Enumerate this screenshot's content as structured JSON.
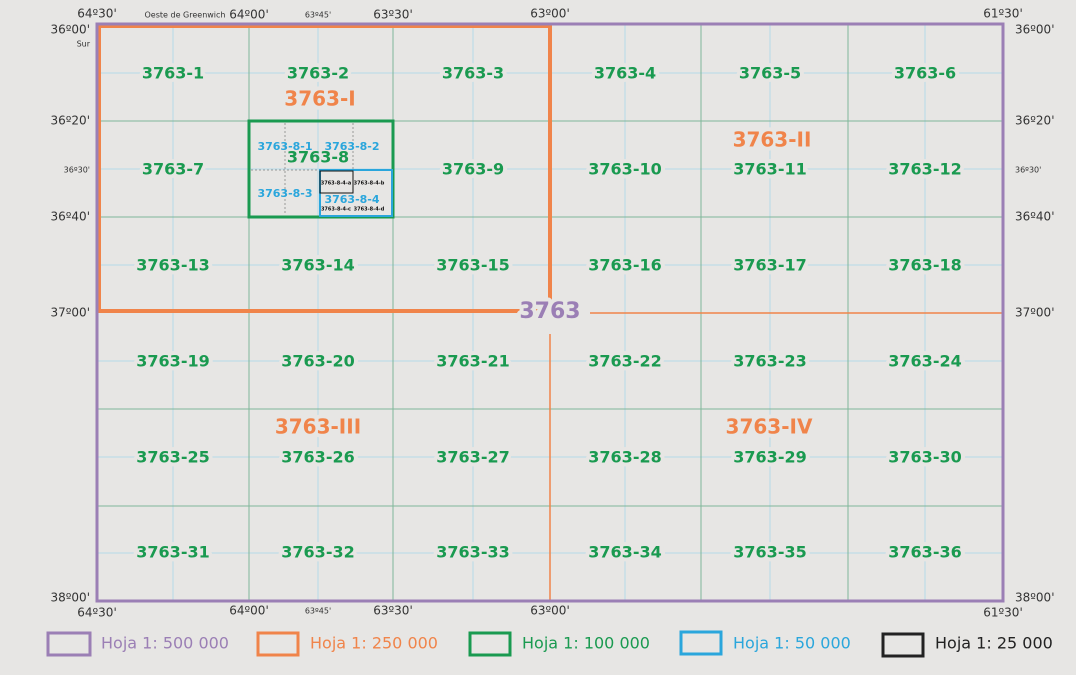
{
  "longitude_labels_top": [
    "64º30'",
    "Oeste de Greenwich",
    "64º00'",
    "63º45'",
    "63º30'",
    "63º00'",
    "61º30'"
  ],
  "longitude_labels_bottom": [
    "64º30'",
    "64º00'",
    "63º45'",
    "63º30'",
    "63º00'",
    "61º30'"
  ],
  "latitude_labels_left": [
    "36º00'",
    "Sur",
    "36º20'",
    "36º30'",
    "36º40'",
    "37º00'",
    "38º00'"
  ],
  "latitude_labels_right": [
    "36º00'",
    "36º20'",
    "36º30'",
    "36º40'",
    "37º00'",
    "38º00'"
  ],
  "sheet_500k": "3763",
  "sheets_250k": [
    "3763-I",
    "3763-II",
    "3763-III",
    "3763-IV"
  ],
  "sheets_100k": [
    "3763-1",
    "3763-2",
    "3763-3",
    "3763-4",
    "3763-5",
    "3763-6",
    "3763-7",
    "3763-8",
    "3763-9",
    "3763-10",
    "3763-11",
    "3763-12",
    "3763-13",
    "3763-14",
    "3763-15",
    "3763-16",
    "3763-17",
    "3763-18",
    "3763-19",
    "3763-20",
    "3763-21",
    "3763-22",
    "3763-23",
    "3763-24",
    "3763-25",
    "3763-26",
    "3763-27",
    "3763-28",
    "3763-29",
    "3763-30",
    "3763-31",
    "3763-32",
    "3763-33",
    "3763-34",
    "3763-35",
    "3763-36"
  ],
  "sheets_50k": [
    "3763-8-1",
    "3763-8-2",
    "3763-8-3",
    "3763-8-4"
  ],
  "sheets_25k": [
    "3763-8-4-a",
    "3763-8-4-b",
    "3763-8-4-c",
    "3763-8-4-d"
  ],
  "legend": [
    "Hoja 1: 500 000",
    "Hoja 1: 250 000",
    "Hoja 1: 100 000",
    "Hoja 1: 50 000",
    "Hoja 1: 25 000"
  ]
}
